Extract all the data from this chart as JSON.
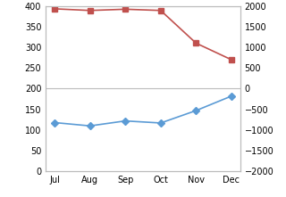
{
  "months": [
    "Jul",
    "Aug",
    "Sep",
    "Oct",
    "Nov",
    "Dec"
  ],
  "blue_values": [
    118,
    110,
    122,
    117,
    147,
    182
  ],
  "red_values": [
    1930,
    1890,
    1920,
    1890,
    1100,
    700
  ],
  "blue_color": "#5B9BD5",
  "red_color": "#C0504D",
  "left_ylim": [
    0,
    400
  ],
  "left_yticks": [
    0,
    50,
    100,
    150,
    200,
    250,
    300,
    350,
    400
  ],
  "right_ylim": [
    -2000,
    2000
  ],
  "right_yticks": [
    -2000,
    -1500,
    -1000,
    -500,
    0,
    500,
    1000,
    1500,
    2000
  ],
  "bg_color": "#ffffff",
  "grid_color": "#bbbbbb",
  "tick_label_size": 7,
  "line_width": 1.2,
  "marker_size": 4
}
